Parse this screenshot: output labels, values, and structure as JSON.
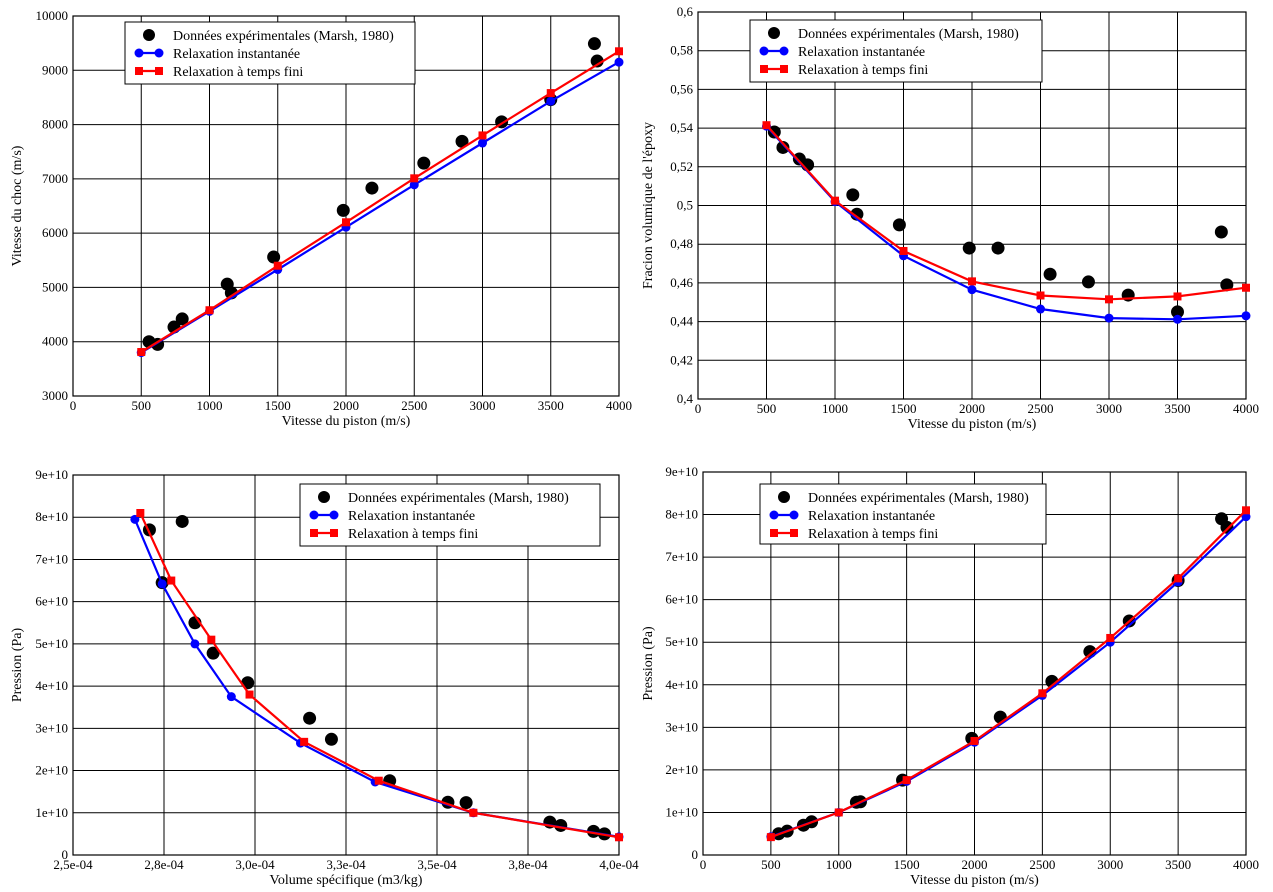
{
  "colors": {
    "experimental": "#000000",
    "instantaneous": "#0000ff",
    "finite_time": "#ff0000",
    "grid": "#000000",
    "background": "#ffffff"
  },
  "chart_data": [
    {
      "type": "line",
      "title": "",
      "xlabel": "Vitesse du piston (m/s)",
      "ylabel": "Vitesse du choc (m/s)",
      "xlim": [
        0,
        4000
      ],
      "ylim": [
        3000,
        10000
      ],
      "x_ticks": [
        0,
        500,
        1000,
        1500,
        2000,
        2500,
        3000,
        3500,
        4000
      ],
      "x_tick_labels": [
        "0",
        "500",
        "1000",
        "1500",
        "2000",
        "2500",
        "3000",
        "3500",
        "4000"
      ],
      "y_ticks": [
        3000,
        4000,
        5000,
        6000,
        7000,
        8000,
        9000,
        10000
      ],
      "y_tick_labels": [
        "3000",
        "4000",
        "5000",
        "6000",
        "7000",
        "8000",
        "9000",
        "10000"
      ],
      "grid": true,
      "legend_position": "top-left",
      "series": [
        {
          "name": "Données expérimentales (Marsh, 1980)",
          "kind": "scatter",
          "color": "#000000",
          "x": [
            557,
            620,
            740,
            800,
            1130,
            1160,
            1470,
            1980,
            2190,
            2570,
            2850,
            3140,
            3500,
            3820,
            3840
          ],
          "y": [
            4000,
            3950,
            4270,
            4420,
            5060,
            4900,
            5560,
            6420,
            6830,
            7290,
            7690,
            8050,
            8460,
            9490,
            9170
          ]
        },
        {
          "name": "Relaxation instantanée",
          "kind": "line-circle",
          "color": "#0000ff",
          "x": [
            500,
            1000,
            1500,
            2000,
            2500,
            3000,
            3500,
            4000
          ],
          "y": [
            3800,
            4560,
            5330,
            6110,
            6890,
            7660,
            8430,
            9150
          ]
        },
        {
          "name": "Relaxation à temps fini",
          "kind": "line-square",
          "color": "#ff0000",
          "x": [
            500,
            1000,
            1500,
            2000,
            2500,
            3000,
            3500,
            4000
          ],
          "y": [
            3810,
            4580,
            5400,
            6200,
            7010,
            7800,
            8580,
            9350
          ]
        }
      ]
    },
    {
      "type": "line",
      "title": "",
      "xlabel": "Vitesse du piston (m/s)",
      "ylabel": "Fracion volumique de l'époxy",
      "xlim": [
        0,
        4000
      ],
      "ylim": [
        0.4,
        0.6
      ],
      "x_ticks": [
        0,
        500,
        1000,
        1500,
        2000,
        2500,
        3000,
        3500,
        4000
      ],
      "x_tick_labels": [
        "0",
        "500",
        "1000",
        "1500",
        "2000",
        "2500",
        "3000",
        "3500",
        "4000"
      ],
      "y_ticks": [
        0.4,
        0.42,
        0.44,
        0.46,
        0.48,
        0.5,
        0.52,
        0.54,
        0.56,
        0.58,
        0.6
      ],
      "y_tick_labels": [
        "0,4",
        "0,42",
        "0,44",
        "0,46",
        "0,48",
        "0,5",
        "0,52",
        "0,54",
        "0,56",
        "0,58",
        "0,6"
      ],
      "grid": true,
      "legend_position": "top-center",
      "series": [
        {
          "name": "Données expérimentales (Marsh, 1980)",
          "kind": "scatter",
          "color": "#000000",
          "x": [
            557,
            620,
            740,
            800,
            1130,
            1160,
            1470,
            1980,
            2190,
            2570,
            2850,
            3140,
            3500,
            3820,
            3860
          ],
          "y": [
            0.538,
            0.53,
            0.524,
            0.521,
            0.5055,
            0.4955,
            0.49,
            0.478,
            0.478,
            0.4645,
            0.4605,
            0.4537,
            0.445,
            0.4863,
            0.459
          ]
        },
        {
          "name": "Relaxation instantanée",
          "kind": "line-circle",
          "color": "#0000ff",
          "x": [
            500,
            1000,
            1500,
            2000,
            2500,
            3000,
            3500,
            4000
          ],
          "y": [
            0.541,
            0.502,
            0.474,
            0.4565,
            0.4465,
            0.4418,
            0.4412,
            0.443
          ]
        },
        {
          "name": "Relaxation à temps fini",
          "kind": "line-square",
          "color": "#ff0000",
          "x": [
            500,
            1000,
            1500,
            2000,
            2500,
            3000,
            3500,
            4000
          ],
          "y": [
            0.5415,
            0.5025,
            0.4765,
            0.4608,
            0.4535,
            0.4515,
            0.453,
            0.4575
          ]
        }
      ]
    },
    {
      "type": "line",
      "title": "",
      "xlabel": "Volume spécifique (m3/kg)",
      "ylabel": "Pression (Pa)",
      "xlim": [
        0.00025,
        0.0004
      ],
      "ylim": [
        0,
        90000000000
      ],
      "x_ticks": [
        0.00025,
        0.000275,
        0.0003,
        0.000325,
        0.00035,
        0.000375,
        0.0004
      ],
      "x_tick_labels": [
        "2,5e-04",
        "2,8e-04",
        "3,0e-04",
        "3,3e-04",
        "3,5e-04",
        "3,8e-04",
        "4,0e-04"
      ],
      "y_ticks": [
        0,
        10000000000,
        20000000000,
        30000000000,
        40000000000,
        50000000000,
        60000000000,
        70000000000,
        80000000000,
        90000000000
      ],
      "y_tick_labels": [
        "0",
        "1e+10",
        "2e+10",
        "3e+10",
        "4e+10",
        "5e+10",
        "6e+10",
        "7e+10",
        "8e+10",
        "9e+10"
      ],
      "grid": true,
      "legend_position": "top-right",
      "series": [
        {
          "name": "Données expérimentales (Marsh, 1980)",
          "kind": "scatter",
          "color": "#000000",
          "x": [
            0.000271,
            0.0002745,
            0.00028,
            0.0002835,
            0.0002885,
            0.000298,
            0.000315,
            0.000321,
            0.000337,
            0.000353,
            0.000358,
            0.000381,
            0.000384,
            0.000393,
            0.000396
          ],
          "y": [
            77000000000,
            64500000000,
            79000000000,
            55000000000,
            47800000000,
            40800000000,
            32400000000,
            27400000000,
            17600000000,
            12500000000,
            12400000000,
            7800000000,
            7000000000,
            5600000000,
            5000000000
          ]
        },
        {
          "name": "Relaxation instantanée",
          "kind": "line-circle",
          "color": "#0000ff",
          "x": [
            0.000267,
            0.0002745,
            0.0002835,
            0.0002935,
            0.0003125,
            0.000333,
            0.00036,
            0.0004
          ],
          "y": [
            79500000000,
            64200000000,
            50000000000,
            37500000000,
            26500000000,
            17300000000,
            10000000000,
            4300000000
          ]
        },
        {
          "name": "Relaxation à temps fini",
          "kind": "line-square",
          "color": "#ff0000",
          "x": [
            0.0002685,
            0.000277,
            0.000288,
            0.0002985,
            0.0003135,
            0.000334,
            0.00036,
            0.0004
          ],
          "y": [
            81000000000,
            65000000000,
            51000000000,
            38000000000,
            26800000000,
            17600000000,
            10000000000,
            4200000000
          ]
        }
      ]
    },
    {
      "type": "line",
      "title": "",
      "xlabel": "Vitesse du piston (m/s)",
      "ylabel": "Pression (Pa)",
      "xlim": [
        0,
        4000
      ],
      "ylim": [
        0,
        90000000000
      ],
      "x_ticks": [
        0,
        500,
        1000,
        1500,
        2000,
        2500,
        3000,
        3500,
        4000
      ],
      "x_tick_labels": [
        "0",
        "500",
        "1000",
        "1500",
        "2000",
        "2500",
        "3000",
        "3500",
        "4000"
      ],
      "y_ticks": [
        0,
        10000000000,
        20000000000,
        30000000000,
        40000000000,
        50000000000,
        60000000000,
        70000000000,
        80000000000,
        90000000000
      ],
      "y_tick_labels": [
        "0",
        "1e+10",
        "2e+10",
        "3e+10",
        "4e+10",
        "5e+10",
        "6e+10",
        "7e+10",
        "8e+10",
        "9e+10"
      ],
      "grid": true,
      "legend_position": "top-left",
      "series": [
        {
          "name": "Données expérimentales (Marsh, 1980)",
          "kind": "scatter",
          "color": "#000000",
          "x": [
            557,
            620,
            740,
            800,
            1130,
            1160,
            1470,
            1980,
            2190,
            2570,
            2850,
            3140,
            3500,
            3820,
            3860
          ],
          "y": [
            5000000000,
            5600000000,
            7000000000,
            7800000000,
            12400000000,
            12500000000,
            17600000000,
            27400000000,
            32400000000,
            40800000000,
            47800000000,
            55000000000,
            64500000000,
            79000000000,
            77000000000
          ]
        },
        {
          "name": "Relaxation instantanée",
          "kind": "line-circle",
          "color": "#0000ff",
          "x": [
            500,
            1000,
            1500,
            2000,
            2500,
            3000,
            3500,
            4000
          ],
          "y": [
            4300000000,
            10000000000,
            17300000000,
            26500000000,
            37500000000,
            50000000000,
            64200000000,
            79500000000
          ]
        },
        {
          "name": "Relaxation à temps fini",
          "kind": "line-square",
          "color": "#ff0000",
          "x": [
            500,
            1000,
            1500,
            2000,
            2500,
            3000,
            3500,
            4000
          ],
          "y": [
            4200000000,
            10000000000,
            17600000000,
            26800000000,
            38000000000,
            51000000000,
            65000000000,
            81000000000
          ]
        }
      ]
    }
  ]
}
